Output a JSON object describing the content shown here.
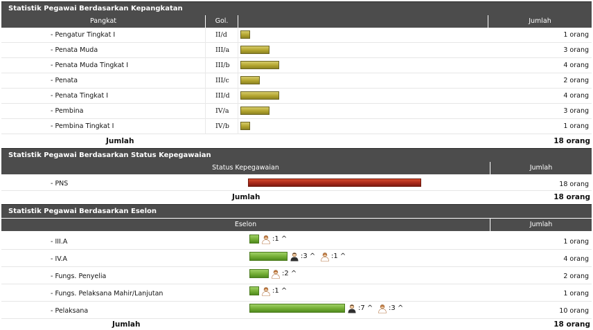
{
  "pangkat_section": {
    "title": "Statistik Pegawai Berdasarkan Kepangkatan",
    "headers": {
      "pangkat": "Pangkat",
      "gol": "Gol.",
      "jumlah": "Jumlah"
    },
    "rows": [
      {
        "label": "- Pengatur Tingkat I",
        "gol": "II/d",
        "count": "1 orang",
        "value": 1
      },
      {
        "label": "- Penata Muda",
        "gol": "III/a",
        "count": "3 orang",
        "value": 3
      },
      {
        "label": "- Penata Muda Tingkat I",
        "gol": "III/b",
        "count": "4 orang",
        "value": 4
      },
      {
        "label": "- Penata",
        "gol": "III/c",
        "count": "2 orang",
        "value": 2
      },
      {
        "label": "- Penata Tingkat I",
        "gol": "III/d",
        "count": "4 orang",
        "value": 4
      },
      {
        "label": "- Pembina",
        "gol": "IV/a",
        "count": "3 orang",
        "value": 3
      },
      {
        "label": "- Pembina Tingkat I",
        "gol": "IV/b",
        "count": "1 orang",
        "value": 1
      }
    ],
    "total_label": "Jumlah",
    "total_value": "18 orang"
  },
  "status_section": {
    "title": "Statistik Pegawai Berdasarkan Status Kepegawaian",
    "headers": {
      "status": "Status Kepegawaian",
      "jumlah": "Jumlah"
    },
    "rows": [
      {
        "label": "- PNS",
        "count": "18 orang",
        "value": 18
      }
    ],
    "total_label": "Jumlah",
    "total_value": "18 orang"
  },
  "eselon_section": {
    "title": "Statistik Pegawai Berdasarkan Eselon",
    "headers": {
      "eselon": "Eselon",
      "jumlah": "Jumlah"
    },
    "rows": [
      {
        "label": "- III.A",
        "count": "1 orang",
        "value": 1,
        "male": null,
        "female": ":1 ^"
      },
      {
        "label": "- IV.A",
        "count": "4 orang",
        "value": 4,
        "male": ":3 ^",
        "female": ":1 ^"
      },
      {
        "label": "- Fungs. Penyelia",
        "count": "2 orang",
        "value": 2,
        "male": null,
        "female": ":2 ^"
      },
      {
        "label": "- Fungs. Pelaksana Mahir/Lanjutan",
        "count": "1 orang",
        "value": 1,
        "male": null,
        "female": ":1 ^"
      },
      {
        "label": "- Pelaksana",
        "count": "10 orang",
        "value": 10,
        "male": ":7 ^",
        "female": ":3 ^"
      }
    ],
    "total_label": "Jumlah",
    "total_value": "18 orang"
  },
  "icons": {
    "male": "male-user-icon",
    "female": "female-user-icon"
  },
  "colors": {
    "header_bg": "#4c4c4c",
    "bar_gold": "#b3a52f",
    "bar_red": "#a9291a",
    "bar_green": "#73ad34"
  }
}
